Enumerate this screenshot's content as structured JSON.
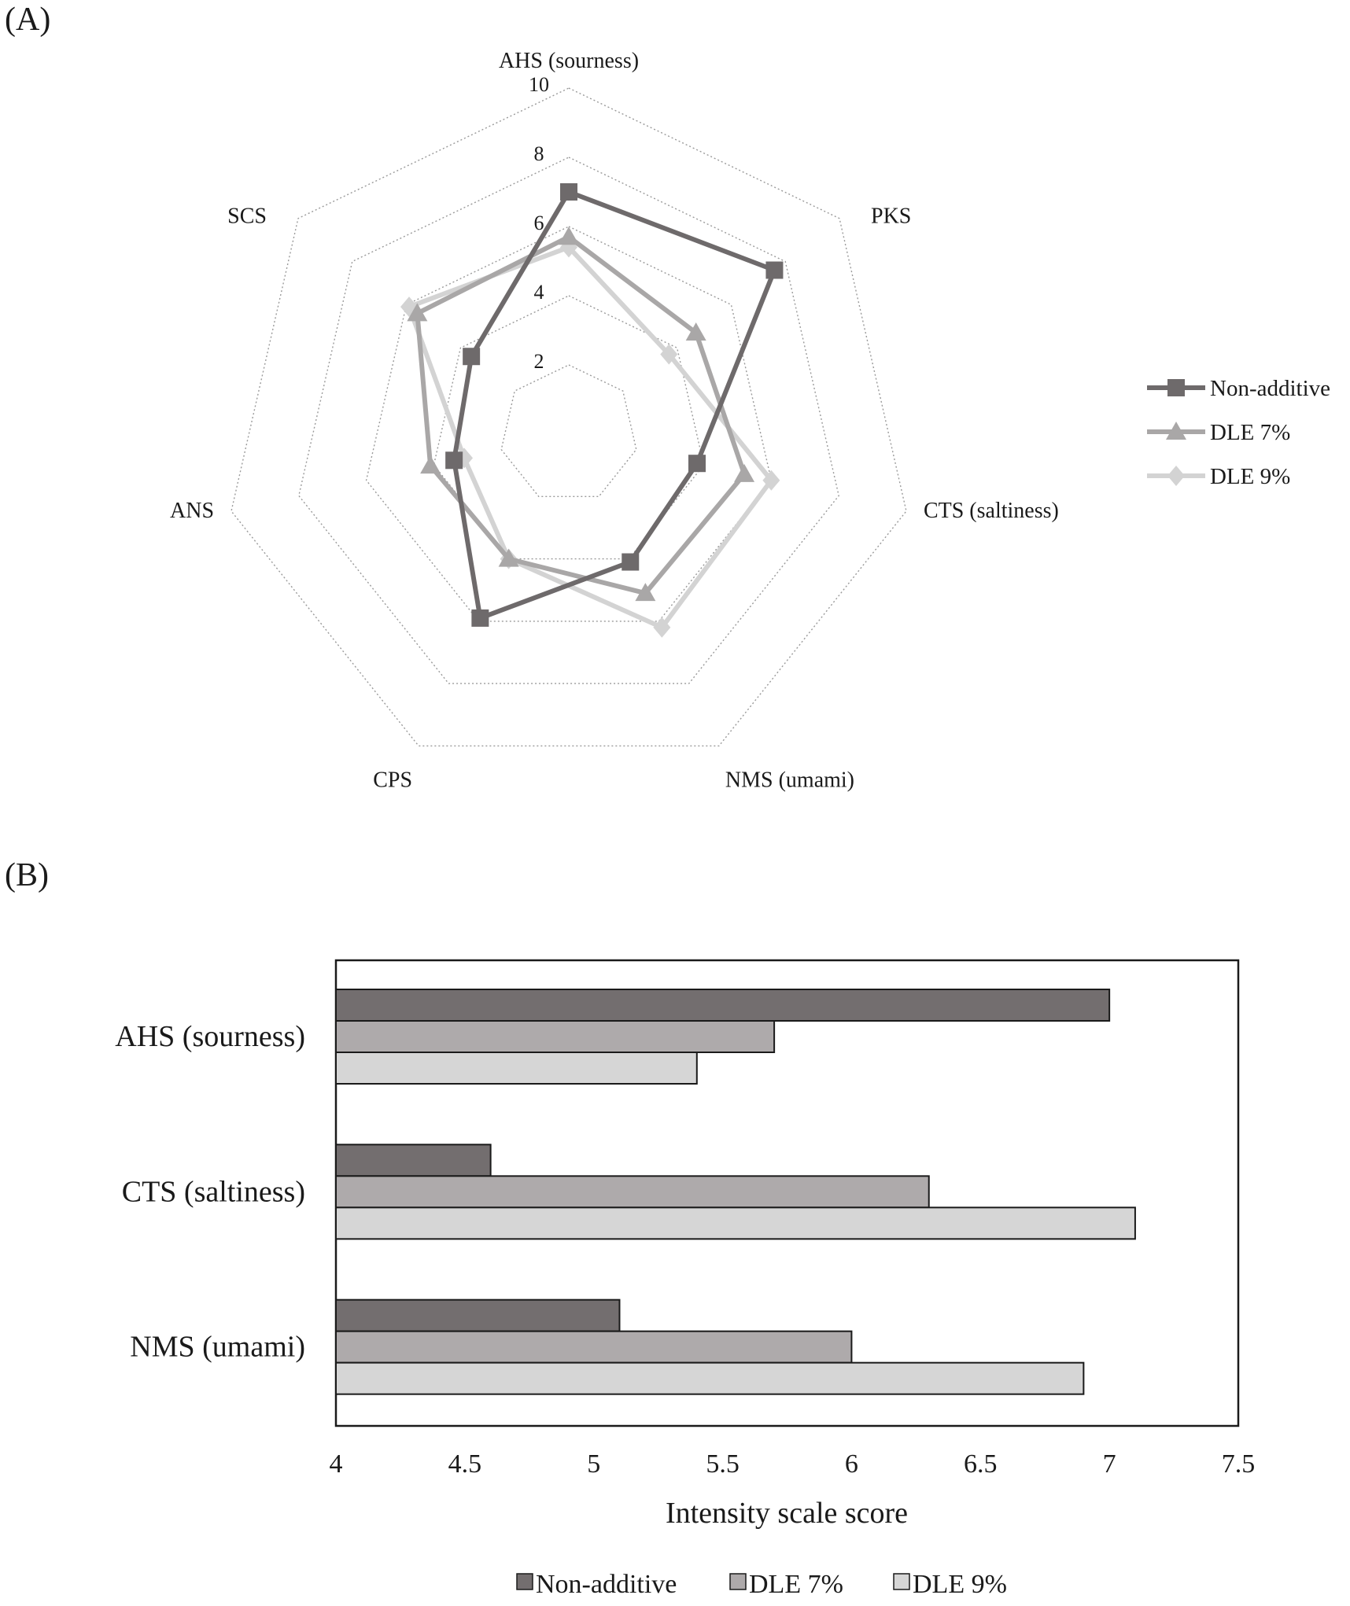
{
  "chart_data": [
    {
      "panel": "(A)",
      "type": "radar",
      "axes": [
        "AHS (sourness)",
        "PKS",
        "CTS (saltiness)",
        "NMS (umami)",
        "CPS",
        "ANS",
        "SCS"
      ],
      "rticks": [
        "2",
        "4",
        "6",
        "8",
        "10"
      ],
      "rlim": [
        0,
        10
      ],
      "grid": true,
      "legend_position": "right",
      "series": [
        {
          "name": "Non-additive",
          "marker": "square",
          "color": "#6e6a6b",
          "values": [
            7.0,
            7.6,
            3.8,
            4.1,
            5.9,
            3.4,
            3.6
          ]
        },
        {
          "name": "DLE 7%",
          "marker": "triangle",
          "color": "#a9a7a7",
          "values": [
            5.7,
            4.7,
            5.2,
            5.1,
            4.0,
            4.1,
            5.6
          ]
        },
        {
          "name": "DLE 9%",
          "marker": "diamond",
          "color": "#d3d3d3",
          "values": [
            5.4,
            3.7,
            6.0,
            6.2,
            4.0,
            3.1,
            5.9
          ]
        }
      ]
    },
    {
      "panel": "(B)",
      "type": "bar",
      "orientation": "horizontal",
      "categories": [
        "AHS (sourness)",
        "CTS (saltiness)",
        "NMS (umami)"
      ],
      "xlabel": "Intensity scale score",
      "xlim": [
        4,
        7.5
      ],
      "xticks": [
        "4",
        "4.5",
        "5",
        "5.5",
        "6",
        "6.5",
        "7",
        "7.5"
      ],
      "legend_position": "bottom",
      "series": [
        {
          "name": "Non-additive",
          "color": "#736e6f",
          "values": [
            7.0,
            4.6,
            5.1
          ]
        },
        {
          "name": "DLE 7%",
          "color": "#aeaaab",
          "values": [
            5.7,
            6.3,
            6.0
          ]
        },
        {
          "name": "DLE 9%",
          "color": "#d6d6d6",
          "values": [
            5.4,
            7.1,
            6.9
          ]
        }
      ]
    }
  ]
}
